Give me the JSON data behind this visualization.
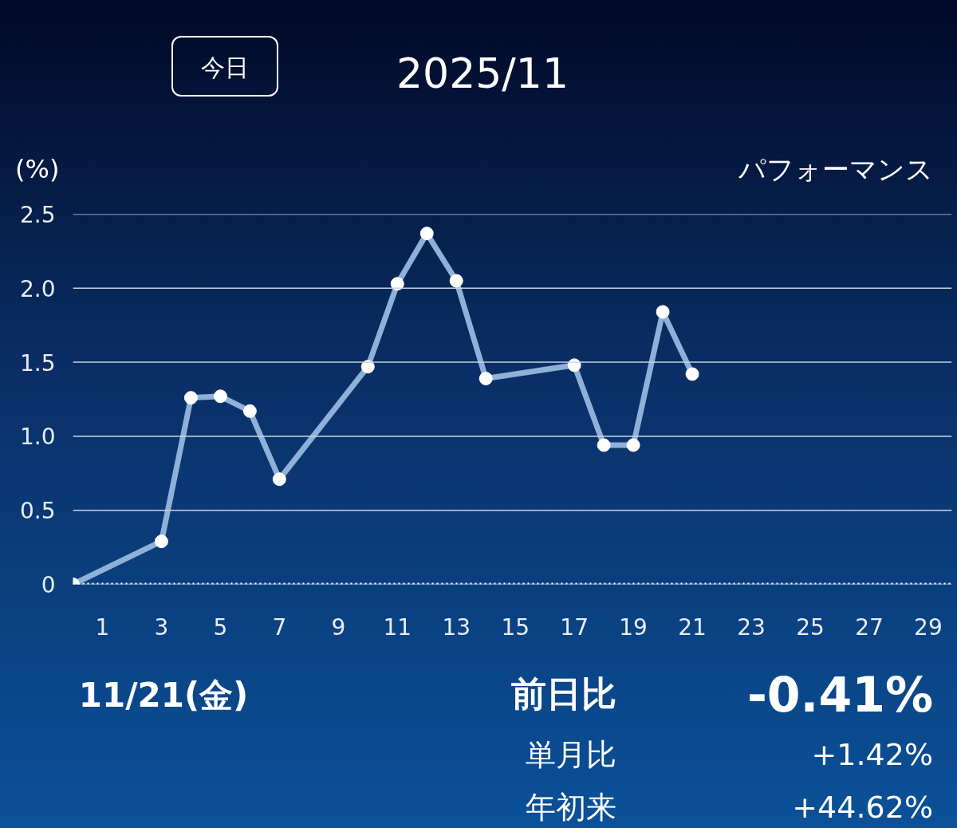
{
  "chart_data": {
    "type": "line",
    "title": "2025/11",
    "ylabel": "(%)",
    "annotations": [
      "パフォーマンス",
      "今日",
      "11/21(金)",
      "前日比",
      "-0.41%",
      "単月比",
      "+1.42%",
      "年初来",
      "+44.62%"
    ],
    "x": [
      0,
      3,
      4,
      5,
      6,
      7,
      10,
      11,
      12,
      13,
      14,
      17,
      18,
      19,
      20,
      21
    ],
    "series": [
      {
        "color": "#8fb0d8",
        "values": [
          0,
          0.29,
          1.26,
          1.27,
          1.17,
          0.71,
          1.47,
          2.03,
          2.37,
          2.05,
          1.39,
          1.48,
          0.94,
          0.94,
          1.84,
          1.42
        ]
      }
    ],
    "xlim": [
      0,
      29.8
    ],
    "xticks": [
      1,
      3,
      5,
      7,
      9,
      11,
      13,
      15,
      17,
      19,
      21,
      23,
      25,
      27,
      29
    ],
    "ylim": [
      0,
      2.5
    ],
    "yticks": [
      {
        "value": 0,
        "label": "0"
      },
      {
        "value": 0.5,
        "label": "0.5"
      },
      {
        "value": 1,
        "label": "1.0"
      },
      {
        "value": 1.5,
        "label": "1.5"
      },
      {
        "value": 2,
        "label": "2.0"
      },
      {
        "value": 2.5,
        "label": "2.5"
      }
    ],
    "grid": "y",
    "marker": "circle",
    "line_style": "solid",
    "ref_lines": [
      {
        "axis": "y",
        "value": 0,
        "line_style": "dotted",
        "color": "#ffffff"
      }
    ]
  }
}
